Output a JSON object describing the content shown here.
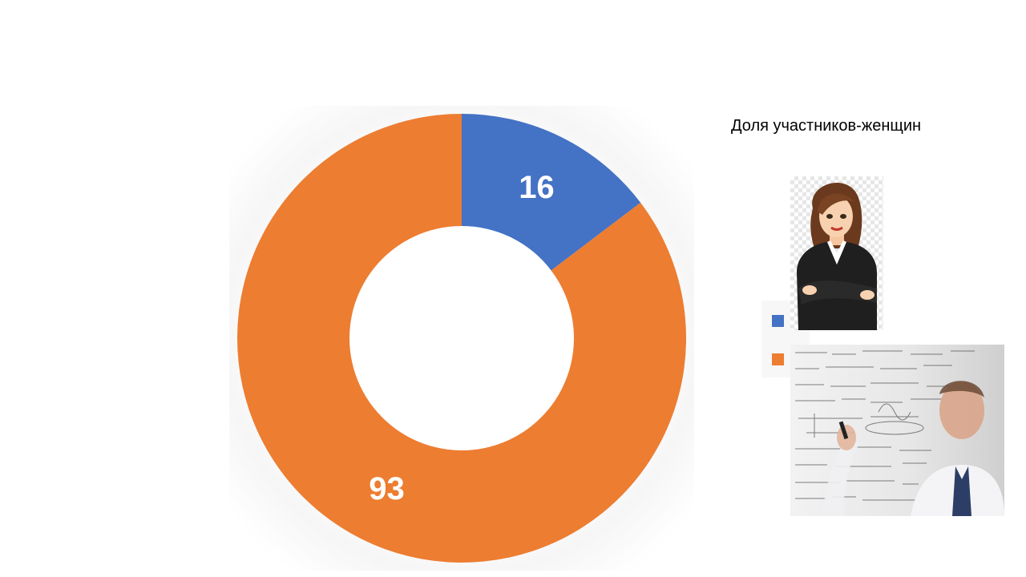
{
  "chart_data": {
    "type": "donut",
    "title": "Доля участников-женщин",
    "categories": [
      "",
      ""
    ],
    "values": [
      16,
      93
    ],
    "data_labels": [
      "16",
      "93"
    ],
    "colors": [
      "#4472C4",
      "#ED7D31"
    ],
    "legend_position": "right",
    "start_angle": "12 o'clock",
    "direction": "clockwise"
  },
  "illustrations": {
    "woman": "cartoon-businesswoman-icon",
    "man": "man-writing-formulas-photo"
  }
}
